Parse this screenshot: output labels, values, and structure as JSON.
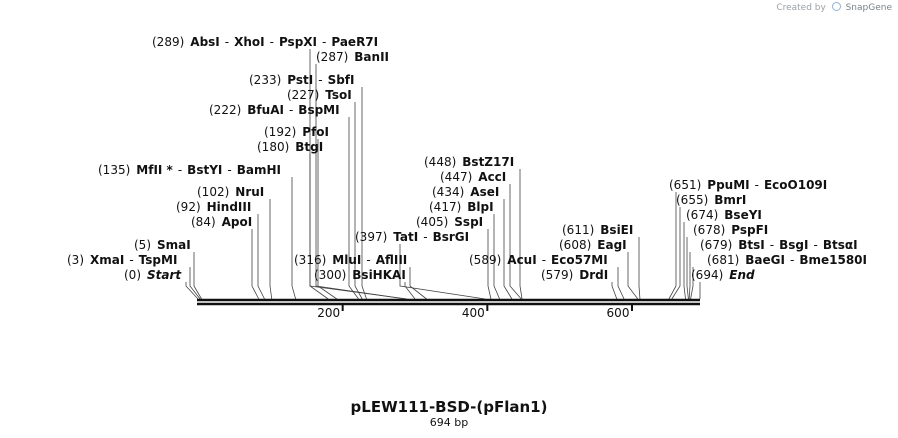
{
  "map": {
    "title": "pLEW111-BSD-(pFlan1)",
    "length_label": "694 bp",
    "length": 694,
    "credit": {
      "prefix": "Created by",
      "brand": "SnapGene"
    },
    "scale_ticks": [
      {
        "value": 200,
        "label": "200"
      },
      {
        "value": 400,
        "label": "400"
      },
      {
        "value": 600,
        "label": "600"
      }
    ],
    "sites": [
      {
        "pos": 289,
        "pos_label": "(289)",
        "names": [
          "AbsI",
          "XhoI",
          "PspXI",
          "PaeR7I"
        ],
        "starred": []
      },
      {
        "pos": 287,
        "pos_label": "(287)",
        "names": [
          "BanII"
        ],
        "starred": []
      },
      {
        "pos": 233,
        "pos_label": "(233)",
        "names": [
          "PstI",
          "SbfI"
        ],
        "starred": []
      },
      {
        "pos": 227,
        "pos_label": "(227)",
        "names": [
          "TsoI"
        ],
        "starred": []
      },
      {
        "pos": 222,
        "pos_label": "(222)",
        "names": [
          "BfuAI",
          "BspMI"
        ],
        "starred": []
      },
      {
        "pos": 192,
        "pos_label": "(192)",
        "names": [
          "PfoI"
        ],
        "starred": []
      },
      {
        "pos": 180,
        "pos_label": "(180)",
        "names": [
          "BtgI"
        ],
        "starred": []
      },
      {
        "pos": 135,
        "pos_label": "(135)",
        "names": [
          "MfII",
          "BstYI",
          "BamHI"
        ],
        "starred": [
          "MfII"
        ]
      },
      {
        "pos": 102,
        "pos_label": "(102)",
        "names": [
          "NruI"
        ],
        "starred": []
      },
      {
        "pos": 92,
        "pos_label": "(92)",
        "names": [
          "HindIII"
        ],
        "starred": []
      },
      {
        "pos": 84,
        "pos_label": "(84)",
        "names": [
          "ApoI"
        ],
        "starred": []
      },
      {
        "pos": 5,
        "pos_label": "(5)",
        "names": [
          "SmaI"
        ],
        "starred": []
      },
      {
        "pos": 3,
        "pos_label": "(3)",
        "names": [
          "XmaI",
          "TspMI"
        ],
        "starred": []
      },
      {
        "pos": 0,
        "pos_label": "(0)",
        "names": [
          "Start"
        ],
        "starred": [],
        "italic": true
      },
      {
        "pos": 397,
        "pos_label": "(397)",
        "names": [
          "TatI",
          "BsrGI"
        ],
        "starred": []
      },
      {
        "pos": 316,
        "pos_label": "(316)",
        "names": [
          "MluI",
          "AflIII"
        ],
        "starred": []
      },
      {
        "pos": 300,
        "pos_label": "(300)",
        "names": [
          "BsiHKAI"
        ],
        "starred": []
      },
      {
        "pos": 448,
        "pos_label": "(448)",
        "names": [
          "BstZ17I"
        ],
        "starred": []
      },
      {
        "pos": 447,
        "pos_label": "(447)",
        "names": [
          "AccI"
        ],
        "starred": []
      },
      {
        "pos": 434,
        "pos_label": "(434)",
        "names": [
          "AseI"
        ],
        "starred": []
      },
      {
        "pos": 417,
        "pos_label": "(417)",
        "names": [
          "BlpI"
        ],
        "starred": []
      },
      {
        "pos": 405,
        "pos_label": "(405)",
        "names": [
          "SspI"
        ],
        "starred": []
      },
      {
        "pos": 589,
        "pos_label": "(589)",
        "names": [
          "AcuI",
          "Eco57MI"
        ],
        "starred": []
      },
      {
        "pos": 611,
        "pos_label": "(611)",
        "names": [
          "BsiEI"
        ],
        "starred": []
      },
      {
        "pos": 608,
        "pos_label": "(608)",
        "names": [
          "EagI"
        ],
        "starred": []
      },
      {
        "pos": 579,
        "pos_label": "(579)",
        "names": [
          "DrdI"
        ],
        "starred": []
      },
      {
        "pos": 651,
        "pos_label": "(651)",
        "names": [
          "PpuMI",
          "EcoO109I"
        ],
        "starred": []
      },
      {
        "pos": 655,
        "pos_label": "(655)",
        "names": [
          "BmrI"
        ],
        "starred": []
      },
      {
        "pos": 674,
        "pos_label": "(674)",
        "names": [
          "BseYI"
        ],
        "starred": []
      },
      {
        "pos": 678,
        "pos_label": "(678)",
        "names": [
          "PspFI"
        ],
        "starred": []
      },
      {
        "pos": 679,
        "pos_label": "(679)",
        "names": [
          "BtsI",
          "BsgI",
          "BtsαI"
        ],
        "starred": []
      },
      {
        "pos": 681,
        "pos_label": "(681)",
        "names": [
          "BaeGI",
          "Bme1580I"
        ],
        "starred": []
      },
      {
        "pos": 694,
        "pos_label": "(694)",
        "names": [
          "End"
        ],
        "starred": [],
        "italic": true
      }
    ]
  }
}
